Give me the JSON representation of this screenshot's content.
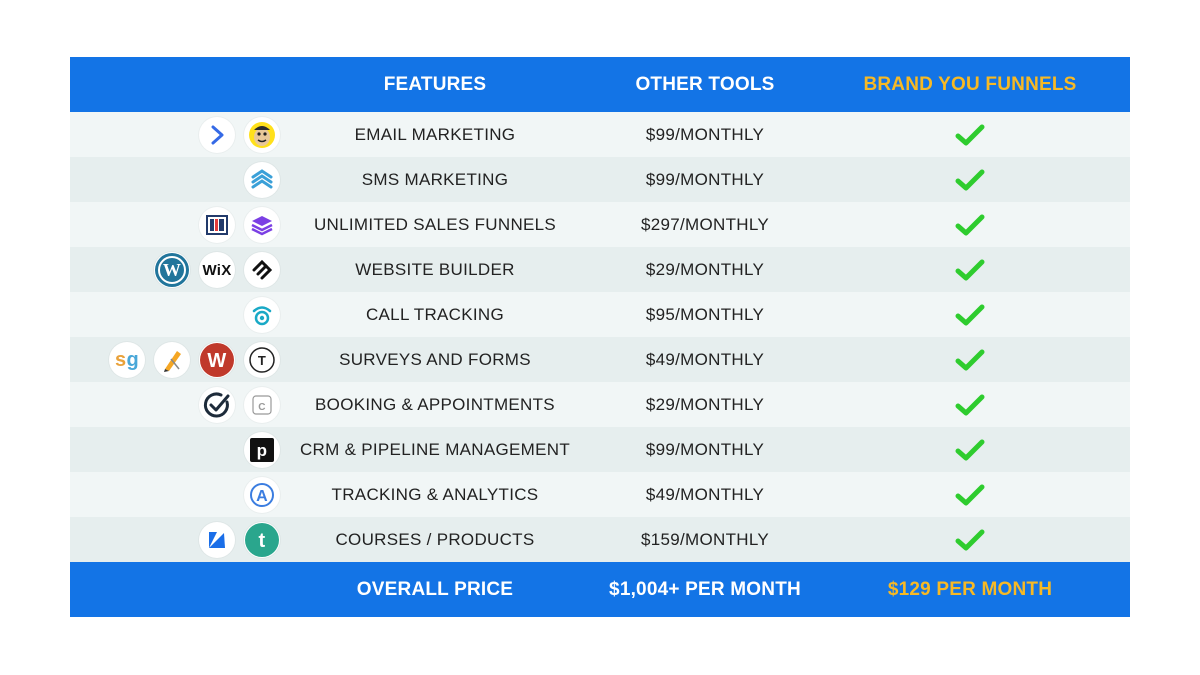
{
  "header": {
    "features": "FEATURES",
    "other_tools": "OTHER TOOLS",
    "brand": "BRAND YOU FUNNELS"
  },
  "rows": [
    {
      "feature": "EMAIL MARKETING",
      "price": "$99/MONTHLY",
      "included": true,
      "icons": [
        "activecampaign-icon",
        "mailchimp-icon"
      ]
    },
    {
      "feature": "SMS MARKETING",
      "price": "$99/MONTHLY",
      "included": true,
      "icons": [
        "sms-layers-icon"
      ]
    },
    {
      "feature": "UNLIMITED SALES FUNNELS",
      "price": "$297/MONTHLY",
      "included": true,
      "icons": [
        "clickfunnels-icon",
        "layers-stack-icon"
      ]
    },
    {
      "feature": "WEBSITE BUILDER",
      "price": "$29/MONTHLY",
      "included": true,
      "icons": [
        "wordpress-icon",
        "wix-icon",
        "squarespace-icon"
      ]
    },
    {
      "feature": "CALL TRACKING",
      "price": "$95/MONTHLY",
      "included": true,
      "icons": [
        "call-tracking-icon"
      ]
    },
    {
      "feature": "SURVEYS AND FORMS",
      "price": "$49/MONTHLY",
      "included": true,
      "icons": [
        "surveygizmo-icon",
        "jotform-icon",
        "wufoo-icon",
        "typeform-icon"
      ]
    },
    {
      "feature": "BOOKING & APPOINTMENTS",
      "price": "$29/MONTHLY",
      "included": true,
      "icons": [
        "acuity-check-icon",
        "calendly-icon"
      ]
    },
    {
      "feature": "CRM & PIPELINE MANAGEMENT",
      "price": "$99/MONTHLY",
      "included": true,
      "icons": [
        "pipedrive-icon"
      ]
    },
    {
      "feature": "TRACKING & ANALYTICS",
      "price": "$49/MONTHLY",
      "included": true,
      "icons": [
        "analytics-a-icon"
      ]
    },
    {
      "feature": "COURSES / PRODUCTS",
      "price": "$159/MONTHLY",
      "included": true,
      "icons": [
        "kajabi-icon",
        "teachable-icon"
      ]
    }
  ],
  "footer": {
    "label": "OVERALL PRICE",
    "other_total": "$1,004+ PER MONTH",
    "brand_total": "$129 PER MONTH"
  },
  "colors": {
    "header_bg": "#1374e6",
    "brand_gold": "#f7b924",
    "check_green": "#2ecc2e"
  }
}
